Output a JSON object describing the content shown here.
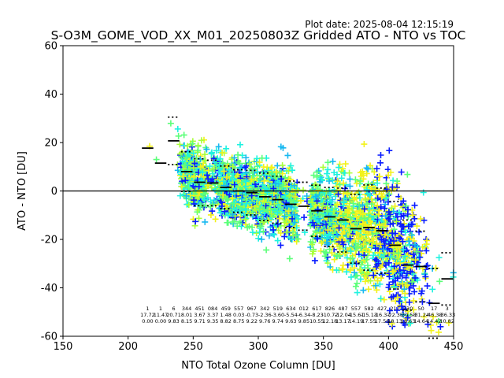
{
  "plot_date": "Plot date: 2025-08-04 12:15:19",
  "chart_data": {
    "type": "scatter",
    "title": "S-O3M_GOME_VOD_XX_M01_20250803Z Gridded ATO - NTO vs TOC",
    "xlabel": "NTO Total Ozone Column [DU]",
    "ylabel": "ATO - NTO [DU]",
    "xlim": [
      150,
      450
    ],
    "ylim": [
      -60,
      60
    ],
    "xticks": [
      150,
      200,
      250,
      300,
      350,
      400,
      450
    ],
    "yticks": [
      -60,
      -40,
      -20,
      0,
      20,
      40,
      60
    ],
    "grid": false,
    "reference_line_y": 0,
    "colors": {
      "blue": "#0a1cff",
      "cyan": "#17b8f0",
      "lightcyan": "#1ff2e0",
      "green": "#5cff7a",
      "lime": "#a8ff3a",
      "yellow": "#f2f21a",
      "mean": "#000000"
    },
    "binned_stats": [
      {
        "x": 215,
        "mean": 17.7,
        "std": 0.0,
        "count": "1",
        "label_mean": "17.72",
        "label_std": "0.00"
      },
      {
        "x": 225,
        "mean": 11.5,
        "std": 0.0,
        "count": "1",
        "label_mean": "11.47",
        "label_std": "0.00"
      },
      {
        "x": 235,
        "mean": 20.7,
        "std": 9.8,
        "count": "6",
        "label_mean": "20.71",
        "label_std": "9.83"
      },
      {
        "x": 245,
        "mean": 8.0,
        "std": 8.2,
        "count": "344",
        "label_mean": "8.01",
        "label_std": "8.15"
      },
      {
        "x": 255,
        "mean": 3.6,
        "std": 9.7,
        "count": "451",
        "label_mean": "3.67",
        "label_std": "9.71"
      },
      {
        "x": 265,
        "mean": 3.3,
        "std": 9.4,
        "count": "084",
        "label_mean": "3.37",
        "label_std": "9.35"
      },
      {
        "x": 275,
        "mean": 1.5,
        "std": 8.8,
        "count": "459",
        "label_mean": "1.48",
        "label_std": "8.82"
      },
      {
        "x": 285,
        "mean": 0.0,
        "std": 8.8,
        "count": "557",
        "label_mean": "0.03",
        "label_std": "8.75"
      },
      {
        "x": 295,
        "mean": -0.7,
        "std": 9.2,
        "count": "967",
        "label_mean": "-0.73",
        "label_std": "9.22"
      },
      {
        "x": 305,
        "mean": -2.4,
        "std": 9.8,
        "count": "342",
        "label_mean": "-2.36",
        "label_std": "9.76"
      },
      {
        "x": 315,
        "mean": -3.6,
        "std": 9.7,
        "count": "519",
        "label_mean": "-3.60",
        "label_std": "9.74"
      },
      {
        "x": 325,
        "mean": -5.5,
        "std": 9.6,
        "count": "634",
        "label_mean": "-5.54",
        "label_std": "9.63"
      },
      {
        "x": 335,
        "mean": -6.3,
        "std": 9.9,
        "count": "012",
        "label_mean": "-6.34",
        "label_std": "9.85"
      },
      {
        "x": 345,
        "mean": -8.2,
        "std": 10.6,
        "count": "617",
        "label_mean": "-8.23",
        "label_std": "10.55"
      },
      {
        "x": 355,
        "mean": -10.7,
        "std": 12.2,
        "count": "826",
        "label_mean": "-10.72",
        "label_std": "12.18"
      },
      {
        "x": 365,
        "mean": -12.0,
        "std": 13.2,
        "count": "487",
        "label_mean": "-12.04",
        "label_std": "13.17"
      },
      {
        "x": 375,
        "mean": -15.6,
        "std": 14.2,
        "count": "557",
        "label_mean": "-15.61",
        "label_std": "14.19"
      },
      {
        "x": 385,
        "mean": -15.1,
        "std": 17.6,
        "count": "582",
        "label_mean": "-15.13",
        "label_std": "17.55"
      },
      {
        "x": 395,
        "mean": -16.4,
        "std": 17.6,
        "count": "427",
        "label_mean": "-16.37",
        "label_std": "17.56"
      },
      {
        "x": 405,
        "mean": -22.4,
        "std": 18.1,
        "count": "217",
        "label_mean": "-22.35",
        "label_std": "18.13"
      },
      {
        "x": 415,
        "mean": -30.6,
        "std": 18.6,
        "count": "130",
        "label_mean": "-30.58",
        "label_std": "18.63"
      },
      {
        "x": 425,
        "mean": -31.2,
        "std": 14.6,
        "count": "50",
        "label_mean": "-31.24",
        "label_std": "14.64"
      },
      {
        "x": 435,
        "mean": -46.4,
        "std": 14.4,
        "count": "17",
        "label_mean": "-46.38",
        "label_std": "14.42"
      },
      {
        "x": 445,
        "mean": -36.3,
        "std": 10.8,
        "count": "3",
        "label_mean": "-36.33",
        "label_std": "10.82"
      }
    ]
  }
}
